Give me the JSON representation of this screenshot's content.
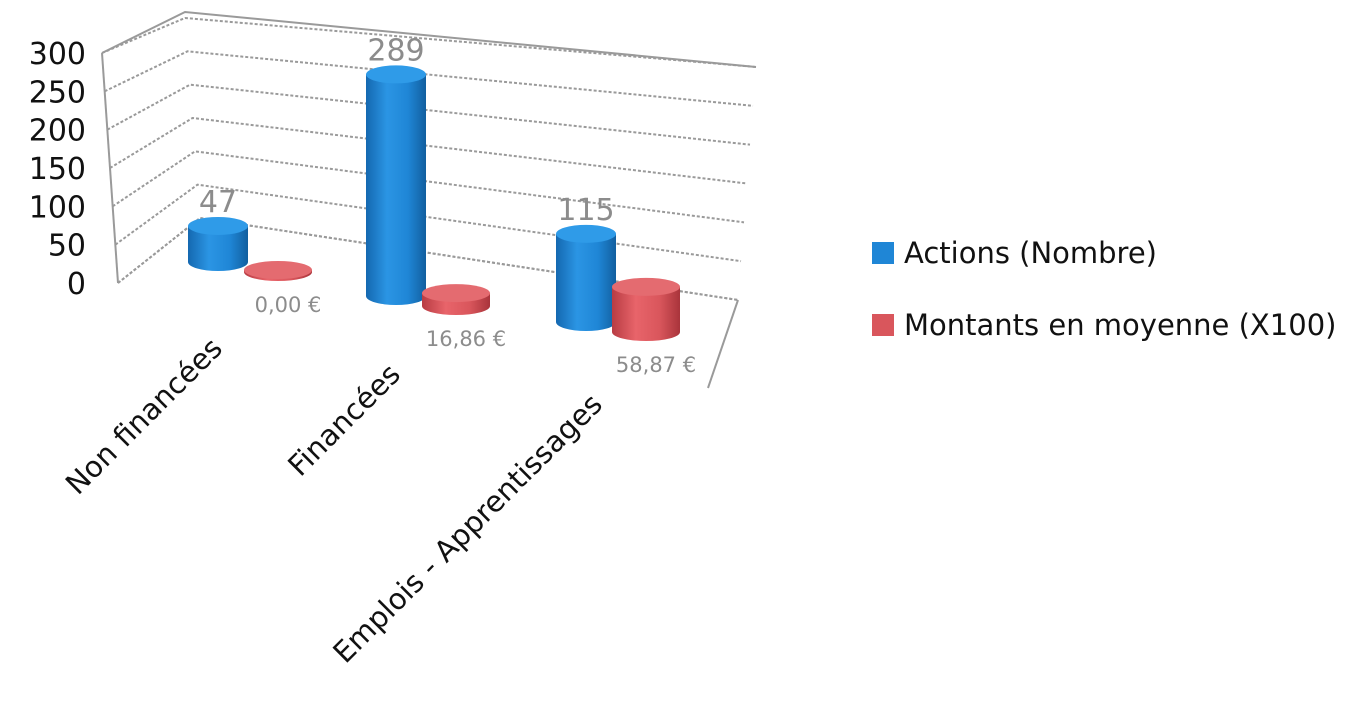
{
  "chart_data": {
    "type": "bar",
    "style": "3d-cylinder",
    "title": "",
    "xlabel": "",
    "ylabel": "",
    "ylim": [
      0,
      300
    ],
    "yticks": [
      "0",
      "50",
      "100",
      "150",
      "200",
      "250",
      "300"
    ],
    "grid": true,
    "legend_position": "right",
    "categories": [
      "Non financées",
      "Financées",
      "Emplois - Apprentissages"
    ],
    "series": [
      {
        "name": "Actions (Nombre)",
        "color": "#1f86d6",
        "values": [
          47,
          289,
          115
        ],
        "labels": [
          "47",
          "289",
          "115"
        ]
      },
      {
        "name": "Montants en moyenne (X100)",
        "color": "#d9565c",
        "values": [
          0,
          16.86,
          58.87
        ],
        "labels": [
          "0,00 €",
          "16,86 €",
          "58,87 €"
        ]
      }
    ]
  }
}
